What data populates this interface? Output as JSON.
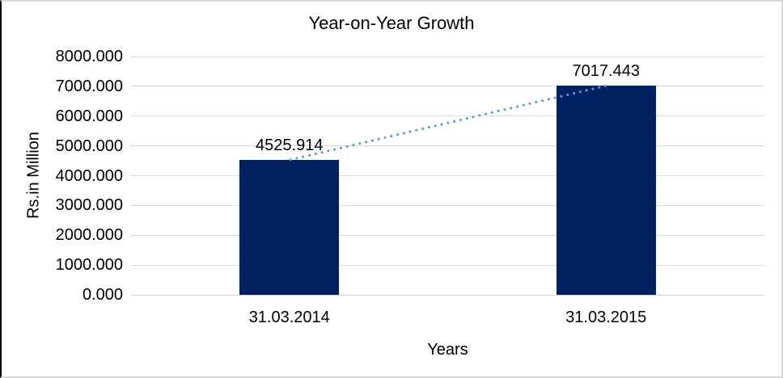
{
  "chart_data": {
    "type": "bar",
    "title": "Year-on-Year Growth",
    "categories": [
      "31.03.2014",
      "31.03.2015"
    ],
    "values": [
      4525.914,
      7017.443
    ],
    "value_labels": [
      "4525.914",
      "7017.443"
    ],
    "xlabel": "Years",
    "ylabel": "Rs.in Million",
    "ylim": [
      0,
      8000
    ],
    "ytick_step": 1000,
    "ytick_labels": [
      "0.000",
      "1000.000",
      "2000.000",
      "3000.000",
      "4000.000",
      "5000.000",
      "6000.000",
      "7000.000",
      "8000.000"
    ],
    "grid": true,
    "legend": "none",
    "trendline": {
      "type": "linear",
      "style": "dotted"
    },
    "colors": {
      "bar": "#002060",
      "trendline": "#5B9BD5",
      "gridline": "#D9D9D9",
      "text": "#000000",
      "frame_border": "#D9D9D9",
      "frame_border_left": "#000000",
      "background": "#FFFFFF"
    }
  }
}
